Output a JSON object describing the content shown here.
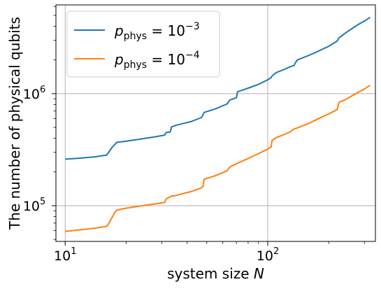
{
  "chart_data": {
    "type": "line",
    "xscale": "log",
    "yscale": "log",
    "xlim": [
      9.0,
      340
    ],
    "ylim": [
      48000,
      6200000
    ],
    "grid": true,
    "legend_placement": "top-left",
    "xlabel": "system size N",
    "xlabel_parts": {
      "text": "system size ",
      "var": "N"
    },
    "ylabel": "The number of physical qubits",
    "xticks": [
      {
        "value": 10,
        "base": "10",
        "exp": "1"
      },
      {
        "value": 100,
        "base": "10",
        "exp": "2"
      }
    ],
    "yticks": [
      {
        "value": 100000,
        "base": "10",
        "exp": "5"
      },
      {
        "value": 1000000,
        "base": "10",
        "exp": "6"
      }
    ],
    "series": [
      {
        "name": "p_phys = 10^-3",
        "label_main": "p",
        "label_sub": "phys",
        "label_eq": " = 10",
        "label_exp": "−3",
        "color": "#1f77b4",
        "x": [
          10,
          12,
          14,
          16,
          16.3,
          17.0,
          17.5,
          18,
          20,
          24,
          28,
          31,
          31.5,
          33,
          33.5,
          35,
          38,
          42,
          47,
          48,
          48.5,
          55,
          63,
          65,
          70,
          71,
          80,
          90,
          100,
          104,
          105,
          110,
          120,
          128,
          135,
          136,
          140,
          160,
          180,
          200,
          220,
          225,
          240,
          260,
          280,
          300,
          320
        ],
        "y": [
          260000,
          266000,
          273000,
          283000,
          295000,
          330000,
          350000,
          368000,
          377000,
          395000,
          413000,
          427000,
          450000,
          455000,
          505000,
          520000,
          540000,
          565000,
          612000,
          650000,
          680000,
          730000,
          810000,
          880000,
          920000,
          1040000,
          1120000,
          1210000,
          1330000,
          1390000,
          1440000,
          1540000,
          1640000,
          1730000,
          1790000,
          1850000,
          2000000,
          2200000,
          2420000,
          2650000,
          2950000,
          3150000,
          3450000,
          3800000,
          4150000,
          4450000,
          4800000
        ]
      },
      {
        "name": "p_phys = 10^-4",
        "label_main": "p",
        "label_sub": "phys",
        "label_eq": " = 10",
        "label_exp": "−4",
        "color": "#ff7f0e",
        "x": [
          10,
          12,
          14,
          16,
          16.3,
          17.0,
          17.5,
          18,
          20,
          24,
          28,
          31,
          31.5,
          33,
          33.5,
          35,
          38,
          42,
          47,
          48,
          48.5,
          55,
          63,
          65,
          70,
          71,
          80,
          90,
          100,
          104,
          105,
          110,
          120,
          128,
          135,
          140,
          160,
          180,
          200,
          220,
          225,
          240,
          260,
          280,
          300,
          320
        ],
        "y": [
          59000,
          61000,
          63000,
          65500,
          68000,
          78000,
          86000,
          91500,
          95000,
          100000,
          104000,
          107000,
          115000,
          120000,
          122000,
          123000,
          128000,
          134000,
          144000,
          150000,
          172000,
          185000,
          205000,
          222000,
          236000,
          240000,
          264000,
          292000,
          320000,
          335000,
          382000,
          405000,
          430000,
          452000,
          485000,
          495000,
          545000,
          605000,
          660000,
          720000,
          840000,
          880000,
          955000,
          1030000,
          1100000,
          1190000
        ]
      }
    ]
  }
}
